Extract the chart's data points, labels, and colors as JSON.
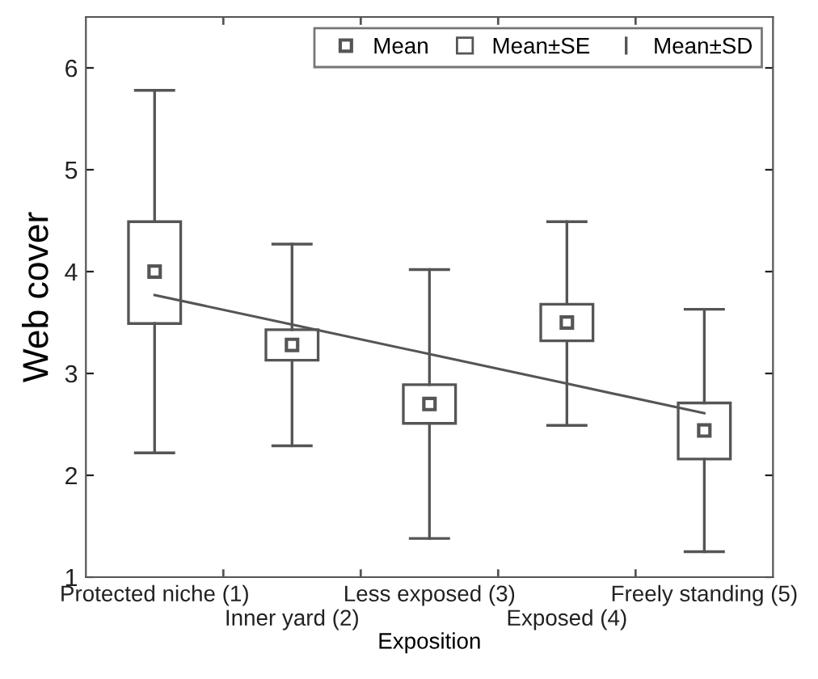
{
  "chart_data": {
    "type": "box",
    "xlabel": "Exposition",
    "ylabel": "Web cover",
    "categories": [
      "Protected niche (1)",
      "Inner yard (2)",
      "Less exposed (3)",
      "Exposed (4)",
      "Freely standing (5)"
    ],
    "boxes": [
      {
        "low": 2.22,
        "q1": 3.49,
        "median": 4.0,
        "q3": 4.49,
        "high": 5.78
      },
      {
        "low": 2.29,
        "q1": 3.13,
        "median": 3.28,
        "q3": 3.43,
        "high": 4.27
      },
      {
        "low": 1.38,
        "q1": 2.51,
        "median": 2.7,
        "q3": 2.89,
        "high": 4.02
      },
      {
        "low": 2.49,
        "q1": 3.32,
        "median": 3.5,
        "q3": 3.68,
        "high": 4.49
      },
      {
        "low": 1.25,
        "q1": 2.16,
        "median": 2.44,
        "q3": 2.71,
        "high": 3.63
      }
    ],
    "series": [
      {
        "type": "line",
        "color": "#555555",
        "values": [
          3.77,
          3.48,
          3.19,
          2.9,
          2.61
        ]
      }
    ],
    "color": "#555555",
    "annotations": [
      "Mean",
      "Mean±SE",
      "Mean±SD"
    ],
    "ylim": [
      1,
      6.5
    ],
    "yticks": [
      1,
      2,
      3,
      4,
      5,
      6
    ],
    "grid": false
  }
}
